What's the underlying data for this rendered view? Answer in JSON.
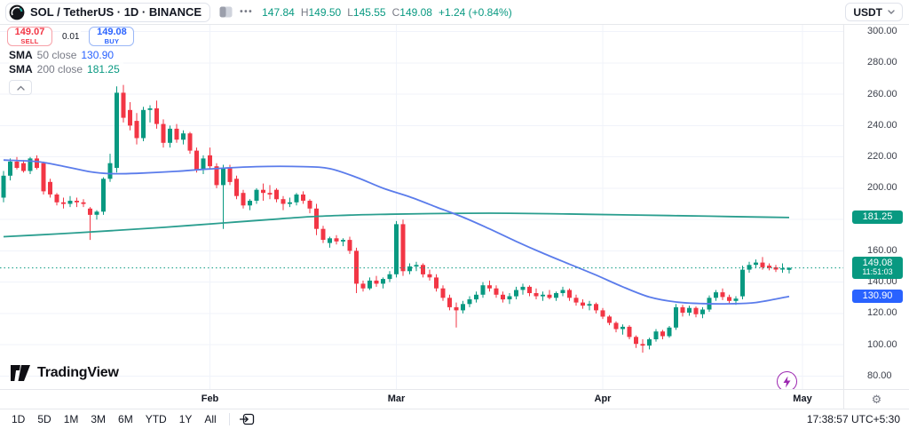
{
  "header": {
    "symbol": "SOL / TetherUS · 1D · BINANCE",
    "more_label": "•••",
    "ohlc": {
      "open": "147.84",
      "high_label": "H",
      "high": "149.50",
      "low_label": "L",
      "low": "145.55",
      "close_label": "C",
      "close": "149.08",
      "change": "+1.24 (+0.84%)"
    },
    "currency": "USDT"
  },
  "trade_panel": {
    "sell_price": "149.07",
    "sell_label": "SELL",
    "spread": "0.01",
    "buy_price": "149.08",
    "buy_label": "BUY"
  },
  "legend": {
    "sma50": {
      "name": "SMA",
      "params": "50 close",
      "value": "130.90"
    },
    "sma200": {
      "name": "SMA",
      "params": "200 close",
      "value": "181.25"
    }
  },
  "watermark": "TradingView",
  "toolbar": {
    "ranges": [
      "1D",
      "5D",
      "1M",
      "3M",
      "6M",
      "YTD",
      "1Y",
      "All"
    ],
    "clock": "17:38:57 UTC+5:30"
  },
  "price_axis": {
    "ticks": [
      {
        "value": 300,
        "label": "300.00"
      },
      {
        "value": 280,
        "label": "280.00"
      },
      {
        "value": 260,
        "label": "260.00"
      },
      {
        "value": 240,
        "label": "240.00"
      },
      {
        "value": 220,
        "label": "220.00"
      },
      {
        "value": 200,
        "label": "200.00"
      },
      {
        "value": 180,
        "label": ""
      },
      {
        "value": 160,
        "label": "160.00"
      },
      {
        "value": 140,
        "label": "140.00"
      },
      {
        "value": 120,
        "label": "120.00"
      },
      {
        "value": 100,
        "label": "100.00"
      },
      {
        "value": 80,
        "label": "80.00"
      }
    ],
    "badges": [
      {
        "id": "sma200-badge",
        "label": "181.25",
        "sub": "",
        "price": 181.25,
        "color": "#089981"
      },
      {
        "id": "last-price-badge",
        "label": "149.08",
        "sub": "11:51:03",
        "price": 149.08,
        "color": "#089981"
      },
      {
        "id": "sma50-badge",
        "label": "130.90",
        "sub": "",
        "price": 130.9,
        "color": "#2962ff"
      }
    ]
  },
  "time_axis": {
    "months": [
      {
        "label": "Feb",
        "index": 31
      },
      {
        "label": "Mar",
        "index": 59
      },
      {
        "label": "Apr",
        "index": 90
      },
      {
        "label": "May",
        "index": 120
      }
    ]
  },
  "chart_data": {
    "type": "candlestick",
    "title": "SOL/USDT daily candles, Jan 1 – Apr 29 (current bar), BINANCE",
    "interval": "1D",
    "current_price": 149.08,
    "countdown": "11:51:03",
    "visible_price_range": [
      80,
      300
    ],
    "grid": true,
    "up_color": "#089981",
    "down_color": "#f23645",
    "candles": [
      [
        194,
        211,
        191,
        208
      ],
      [
        208,
        219,
        205,
        217
      ],
      [
        217,
        220,
        212,
        213
      ],
      [
        216,
        218,
        210,
        211
      ],
      [
        211,
        220,
        209,
        219
      ],
      [
        219,
        221,
        212,
        213
      ],
      [
        216,
        217,
        196,
        198
      ],
      [
        204,
        206,
        194,
        196
      ],
      [
        196,
        197,
        189,
        191
      ],
      [
        191,
        194,
        187,
        190
      ],
      [
        190,
        195,
        188,
        192
      ],
      [
        192,
        194,
        188,
        191
      ],
      [
        191,
        193,
        188,
        190
      ],
      [
        187,
        188,
        167,
        183
      ],
      [
        183,
        186,
        180,
        185
      ],
      [
        185,
        207,
        183,
        206
      ],
      [
        206,
        222,
        204,
        216
      ],
      [
        213,
        265,
        210,
        261
      ],
      [
        261,
        266,
        242,
        245
      ],
      [
        250,
        255,
        237,
        240
      ],
      [
        243,
        248,
        228,
        232
      ],
      [
        232,
        252,
        230,
        250
      ],
      [
        250,
        253,
        242,
        251
      ],
      [
        251,
        256,
        238,
        241
      ],
      [
        241,
        244,
        226,
        229
      ],
      [
        229,
        240,
        226,
        238
      ],
      [
        238,
        241,
        229,
        231
      ],
      [
        231,
        237,
        228,
        235
      ],
      [
        235,
        236,
        222,
        224
      ],
      [
        224,
        226,
        210,
        212
      ],
      [
        212,
        221,
        209,
        219
      ],
      [
        221,
        226,
        212,
        214
      ],
      [
        214,
        216,
        200,
        202
      ],
      [
        202,
        215,
        174,
        213
      ],
      [
        213,
        215,
        202,
        204
      ],
      [
        206,
        208,
        193,
        195
      ],
      [
        197,
        199,
        187,
        189
      ],
      [
        189,
        193,
        186,
        192
      ],
      [
        192,
        200,
        190,
        199
      ],
      [
        199,
        203,
        192,
        197
      ],
      [
        197,
        202,
        193,
        196
      ],
      [
        199,
        200,
        191,
        193
      ],
      [
        193,
        195,
        186,
        190
      ],
      [
        190,
        194,
        188,
        191
      ],
      [
        191,
        197,
        189,
        196
      ],
      [
        196,
        198,
        190,
        192
      ],
      [
        192,
        193,
        184,
        187
      ],
      [
        187,
        190,
        170,
        174
      ],
      [
        174,
        176,
        165,
        167
      ],
      [
        165,
        169,
        162,
        168
      ],
      [
        168,
        170,
        164,
        166
      ],
      [
        166,
        168,
        163,
        167
      ],
      [
        167,
        169,
        158,
        160
      ],
      [
        160,
        162,
        133,
        139
      ],
      [
        139,
        141,
        134,
        136
      ],
      [
        136,
        143,
        135,
        141
      ],
      [
        141,
        144,
        137,
        139
      ],
      [
        139,
        143,
        136,
        142
      ],
      [
        142,
        147,
        140,
        145
      ],
      [
        145,
        179,
        143,
        177
      ],
      [
        177,
        180,
        144,
        147
      ],
      [
        147,
        152,
        145,
        150
      ],
      [
        150,
        153,
        147,
        151
      ],
      [
        151,
        152,
        143,
        145
      ],
      [
        145,
        148,
        141,
        143
      ],
      [
        143,
        145,
        134,
        136
      ],
      [
        136,
        138,
        128,
        130
      ],
      [
        130,
        132,
        122,
        124
      ],
      [
        124,
        127,
        111,
        122
      ],
      [
        122,
        128,
        120,
        126
      ],
      [
        126,
        131,
        124,
        129
      ],
      [
        129,
        134,
        127,
        132
      ],
      [
        132,
        140,
        130,
        138
      ],
      [
        138,
        141,
        134,
        136
      ],
      [
        136,
        138,
        130,
        132
      ],
      [
        132,
        134,
        127,
        129
      ],
      [
        129,
        133,
        126,
        131
      ],
      [
        131,
        137,
        129,
        135
      ],
      [
        135,
        139,
        132,
        137
      ],
      [
        137,
        138,
        131,
        133
      ],
      [
        133,
        136,
        129,
        131
      ],
      [
        131,
        134,
        128,
        132
      ],
      [
        132,
        135,
        129,
        130
      ],
      [
        130,
        134,
        128,
        133
      ],
      [
        133,
        137,
        131,
        135
      ],
      [
        135,
        136,
        128,
        130
      ],
      [
        130,
        132,
        125,
        127
      ],
      [
        127,
        129,
        123,
        125
      ],
      [
        125,
        128,
        122,
        126
      ],
      [
        126,
        127,
        120,
        122
      ],
      [
        122,
        123.5,
        116.5,
        118
      ],
      [
        118,
        119,
        112.5,
        114
      ],
      [
        114,
        115,
        108,
        110
      ],
      [
        110,
        113,
        106.5,
        111.5
      ],
      [
        111.5,
        112.5,
        103.5,
        105
      ],
      [
        105,
        106,
        98,
        100.5
      ],
      [
        100.5,
        103.5,
        95,
        99.5
      ],
      [
        99.5,
        104.5,
        97,
        103.5
      ],
      [
        103.5,
        110,
        102,
        108.5
      ],
      [
        108.5,
        109.5,
        103.5,
        105.5
      ],
      [
        105.5,
        112,
        104.5,
        111
      ],
      [
        111,
        126,
        109.5,
        124
      ],
      [
        124,
        125.5,
        118,
        120.5
      ],
      [
        120.5,
        125,
        118.5,
        123.5
      ],
      [
        123.5,
        124.5,
        117.5,
        119.5
      ],
      [
        119.5,
        124,
        117,
        122.5
      ],
      [
        122.5,
        131.5,
        121,
        130
      ],
      [
        130,
        135,
        128,
        133.5
      ],
      [
        133.5,
        136,
        128.5,
        130.5
      ],
      [
        130.5,
        132,
        126,
        128
      ],
      [
        128,
        131,
        125.5,
        129.5
      ],
      [
        131,
        150.5,
        129,
        148
      ],
      [
        148,
        153,
        146,
        151
      ],
      [
        151,
        154.5,
        149,
        152.5
      ],
      [
        152.5,
        156,
        148,
        149.5
      ],
      [
        150.5,
        152,
        147.5,
        149
      ],
      [
        149.5,
        151,
        146.5,
        148
      ],
      [
        148,
        152,
        146,
        148.8
      ],
      [
        147.84,
        149.5,
        145.55,
        149.08
      ]
    ],
    "sma50": {
      "period": 50,
      "color": "#5b7ceb",
      "last_value": 130.9,
      "points": [
        [
          0,
          218
        ],
        [
          5,
          217
        ],
        [
          9,
          214
        ],
        [
          13,
          210.5
        ],
        [
          16,
          209.3
        ],
        [
          20,
          209.5
        ],
        [
          26,
          210.8
        ],
        [
          31,
          212.3
        ],
        [
          38,
          213.8
        ],
        [
          45,
          213.8
        ],
        [
          49,
          212.5
        ],
        [
          53,
          207
        ],
        [
          57,
          200
        ],
        [
          61,
          194.5
        ],
        [
          65,
          188
        ],
        [
          69,
          181.5
        ],
        [
          73,
          174
        ],
        [
          77,
          166
        ],
        [
          81,
          158.5
        ],
        [
          85,
          151.5
        ],
        [
          89,
          144.5
        ],
        [
          93,
          137
        ],
        [
          97,
          130.5
        ],
        [
          101,
          127.3
        ],
        [
          105,
          126.3
        ],
        [
          109,
          126.2
        ],
        [
          113,
          127
        ],
        [
          118,
          130.9
        ]
      ]
    },
    "sma200": {
      "period": 200,
      "color": "#2a9e8f",
      "last_value": 181.25,
      "points": [
        [
          0,
          169
        ],
        [
          8,
          170.8
        ],
        [
          16,
          172.8
        ],
        [
          24,
          175
        ],
        [
          32,
          177.5
        ],
        [
          40,
          180
        ],
        [
          46,
          181.8
        ],
        [
          52,
          182.8
        ],
        [
          58,
          183.4
        ],
        [
          64,
          183.8
        ],
        [
          70,
          184
        ],
        [
          76,
          184
        ],
        [
          82,
          183.7
        ],
        [
          88,
          183.3
        ],
        [
          94,
          182.9
        ],
        [
          100,
          182.5
        ],
        [
          106,
          182.1
        ],
        [
          112,
          181.7
        ],
        [
          118,
          181.25
        ]
      ]
    }
  },
  "colors": {
    "up": "#089981",
    "down": "#f23645",
    "grid": "#f0f3fa",
    "badge_green": "#089981",
    "badge_blue": "#2962ff",
    "accent_purple": "#9c27b0",
    "muted_text": "#787b86"
  }
}
